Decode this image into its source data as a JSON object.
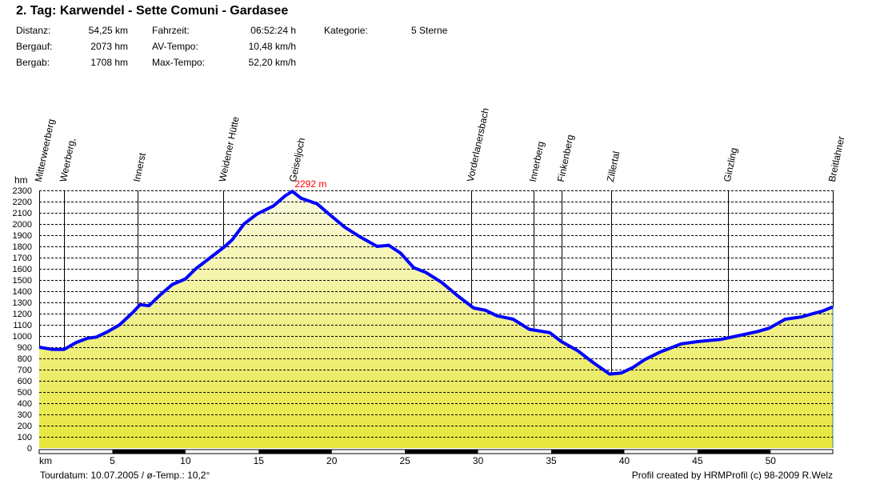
{
  "header": {
    "title": "2. Tag: Karwendel - Sette Comuni - Gardasee",
    "stats": [
      {
        "label": "Distanz:",
        "value": "54,25 km"
      },
      {
        "label": "Bergauf:",
        "value": "2073 hm"
      },
      {
        "label": "Bergab:",
        "value": "1708 hm"
      },
      {
        "label": "Fahrzeit:",
        "value": "06:52:24 h"
      },
      {
        "label": "AV-Tempo:",
        "value": "10,48 km/h"
      },
      {
        "label": "Max-Tempo:",
        "value": "52,20 km/h"
      },
      {
        "label": "Kategorie:",
        "value": "5 Sterne"
      }
    ]
  },
  "footer": {
    "left": "Tourdatum: 10.07.2005  /  ø-Temp.: 10,2°",
    "right": "Profil created by HRMProfil (c) 98-2009 R.Welz"
  },
  "colors": {
    "line": "#0000ff",
    "fill_top": "#fbfbe2",
    "fill_bottom": "#e6e63a",
    "peak": "#ff0000"
  },
  "chart_data": {
    "type": "area",
    "xlabel": "km",
    "ylabel": "hm",
    "xlim": [
      0,
      54.25
    ],
    "ylim": [
      0,
      2300
    ],
    "xticks": [
      5,
      10,
      15,
      20,
      25,
      30,
      35,
      40,
      45,
      50
    ],
    "yticks": [
      0,
      100,
      200,
      300,
      400,
      500,
      600,
      700,
      800,
      900,
      1000,
      1100,
      1200,
      1300,
      1400,
      1500,
      1600,
      1700,
      1800,
      1900,
      2000,
      2100,
      2200,
      2300
    ],
    "grid": true,
    "peak_label": "2292 m",
    "peak": {
      "x": 17.3,
      "y": 2292
    },
    "x": [
      0,
      0.9,
      1.7,
      2.5,
      3.3,
      3.9,
      4.7,
      5.5,
      6.4,
      6.9,
      7.5,
      8.3,
      9.1,
      10.0,
      10.7,
      11.6,
      12.7,
      13.2,
      14.0,
      14.9,
      16.0,
      16.8,
      17.3,
      17.9,
      19.0,
      19.8,
      20.9,
      22.0,
      23.1,
      23.9,
      24.7,
      25.6,
      26.4,
      27.5,
      28.6,
      29.7,
      30.5,
      31.3,
      32.4,
      33.5,
      34.9,
      35.7,
      36.8,
      37.9,
      39.0,
      39.8,
      40.6,
      41.4,
      42.5,
      43.9,
      45.0,
      46.6,
      47.7,
      49.1,
      49.9,
      51.0,
      52.1,
      52.9,
      53.5,
      54.25
    ],
    "y": [
      900,
      880,
      880,
      940,
      980,
      990,
      1040,
      1100,
      1210,
      1280,
      1270,
      1370,
      1460,
      1510,
      1600,
      1690,
      1800,
      1860,
      2000,
      2090,
      2160,
      2250,
      2292,
      2230,
      2180,
      2090,
      1970,
      1880,
      1800,
      1810,
      1740,
      1610,
      1570,
      1480,
      1360,
      1250,
      1230,
      1180,
      1150,
      1060,
      1030,
      950,
      870,
      760,
      660,
      670,
      720,
      790,
      860,
      930,
      950,
      970,
      1000,
      1040,
      1070,
      1150,
      1170,
      1200,
      1220,
      1260
    ],
    "waypoints": [
      {
        "name": "Mitterweerberg",
        "km": 0.0
      },
      {
        "name": "Weerberg,",
        "km": 1.7
      },
      {
        "name": "Innerst",
        "km": 6.75
      },
      {
        "name": "Weidener Hütte",
        "km": 12.6
      },
      {
        "name": "Geiseljoch",
        "km": 17.4
      },
      {
        "name": "Vorderlanersbach",
        "km": 29.55
      },
      {
        "name": "Innerberg",
        "km": 33.8
      },
      {
        "name": "Finkenberg",
        "km": 35.7
      },
      {
        "name": "Zillertal",
        "km": 39.1
      },
      {
        "name": "Ginzling",
        "km": 47.1
      },
      {
        "name": "Breitlahner",
        "km": 54.25
      }
    ]
  }
}
